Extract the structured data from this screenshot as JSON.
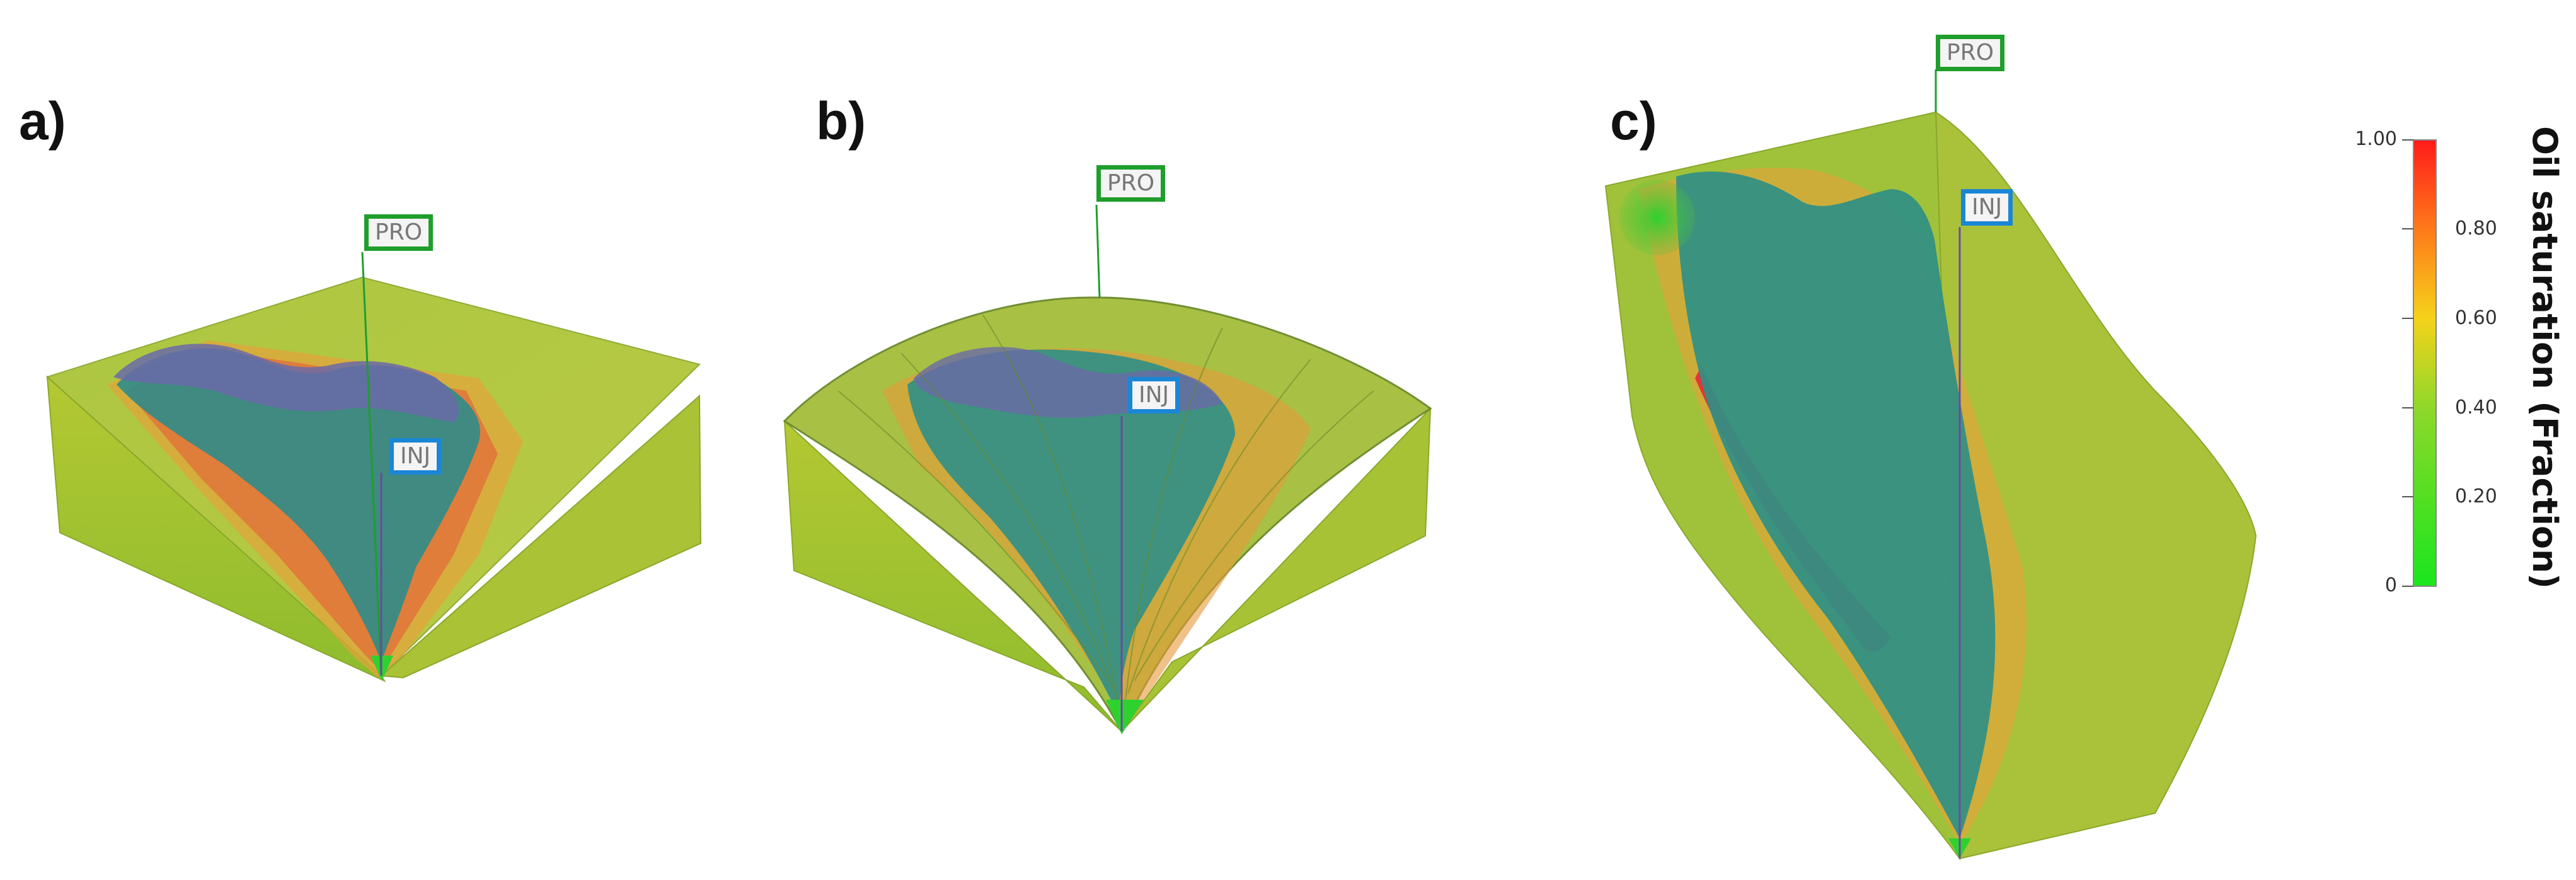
{
  "panels": [
    {
      "label": "a)",
      "producer_tag": "PRO",
      "injector_tag": "INJ"
    },
    {
      "label": "b)",
      "producer_tag": "PRO",
      "injector_tag": "INJ"
    },
    {
      "label": "c)",
      "producer_tag": "PRO",
      "injector_tag": "INJ"
    }
  ],
  "colorbar": {
    "title": "Oil saturation (Fraction)",
    "ticks": [
      "1.00",
      "0.80",
      "0.60",
      "0.40",
      "0.20",
      "0"
    ],
    "colors": {
      "top": "#ff1a1a",
      "upper": "#ff8c1a",
      "middle": "#f5e31a",
      "lower": "#3fd13f",
      "bottom": "#20e020"
    }
  },
  "colors": {
    "producer_box": "#1f9e2c",
    "injector_box": "#1b86d6",
    "swept_zone": "#2f8c8a",
    "background_rock": "#9fc23a"
  }
}
